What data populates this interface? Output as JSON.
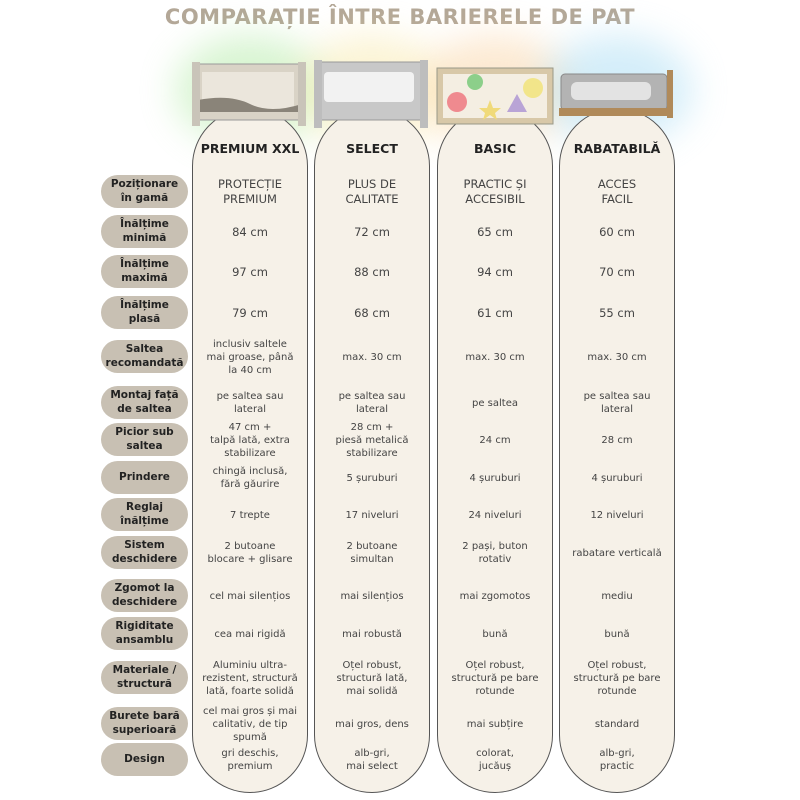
{
  "title": "COMPARAȚIE ÎNTRE BARIERELE DE PAT",
  "products": [
    {
      "name": "PREMIUM XXL",
      "glow": "#a8e89a"
    },
    {
      "name": "SELECT",
      "glow": "#f7e6a0"
    },
    {
      "name": "BASIC",
      "glow": "#f9cf9a"
    },
    {
      "name": "RABATABILĂ",
      "glow": "#9fd8f2"
    }
  ],
  "rows": [
    {
      "label": "Poziționare\nîn gamă",
      "values": [
        "PROTECȚIE\nPREMIUM",
        "PLUS DE\nCALITATE",
        "PRACTIC ȘI\nACCESIBIL",
        "ACCES\nFACIL"
      ]
    },
    {
      "label": "Înălțime\nminimă",
      "values": [
        "84 cm",
        "72 cm",
        "65 cm",
        "60 cm"
      ]
    },
    {
      "label": "Înălțime\nmaximă",
      "values": [
        "97 cm",
        "88 cm",
        "94 cm",
        "70 cm"
      ]
    },
    {
      "label": "Înălțime\nplasă",
      "values": [
        "79 cm",
        "68 cm",
        "61 cm",
        "55 cm"
      ]
    },
    {
      "label": "Saltea\nrecomandată",
      "values": [
        "inclusiv saltele\nmai groase, până\nla 40 cm",
        "max. 30 cm",
        "max. 30 cm",
        "max. 30 cm"
      ]
    },
    {
      "label": "Montaj față\nde saltea",
      "values": [
        "pe saltea sau\nlateral",
        "pe saltea sau\nlateral",
        "pe saltea",
        "pe saltea sau\nlateral"
      ]
    },
    {
      "label": "Picior sub\nsaltea",
      "values": [
        "47 cm +\ntalpă lată, extra\nstabilizare",
        "28 cm +\npiesă metalică\nstabilizare",
        "24 cm",
        "28 cm"
      ]
    },
    {
      "label": "Prindere",
      "values": [
        "chingă inclusă,\nfără găurire",
        "5 șuruburi",
        "4 șuruburi",
        "4 șuruburi"
      ]
    },
    {
      "label": "Reglaj\nînălțime",
      "values": [
        "7 trepte",
        "17 niveluri",
        "24 niveluri",
        "12 niveluri"
      ]
    },
    {
      "label": "Sistem\ndeschidere",
      "values": [
        "2 butoane\nblocare + glisare",
        "2 butoane\nsimultan",
        "2 pași, buton\nrotativ",
        "rabatare verticală"
      ]
    },
    {
      "label": "Zgomot la\ndeschidere",
      "values": [
        "cel mai silențios",
        "mai silențios",
        "mai zgomotos",
        "mediu"
      ]
    },
    {
      "label": "Rigiditate\nansamblu",
      "values": [
        "cea mai rigidă",
        "mai robustă",
        "bună",
        "bună"
      ]
    },
    {
      "label": "Materiale /\nstructură",
      "values": [
        "Aluminiu ultra-\nrezistent, structură\nlată, foarte solidă",
        "Oțel robust,\nstructură lată,\nmai solidă",
        "Oțel robust,\nstructură pe bare\nrotunde",
        "Oțel robust,\nstructură pe bare\nrotunde"
      ]
    },
    {
      "label": "Burete bară\nsuperioară",
      "values": [
        "cel mai gros și mai\ncalitativ, de tip\nspumă",
        "mai gros, dens",
        "mai subțire",
        "standard"
      ]
    },
    {
      "label": "Design",
      "values": [
        "gri deschis,\npremium",
        "alb-gri,\nmai select",
        "colorat,\njucăuș",
        "alb-gri,\npractic"
      ]
    }
  ]
}
